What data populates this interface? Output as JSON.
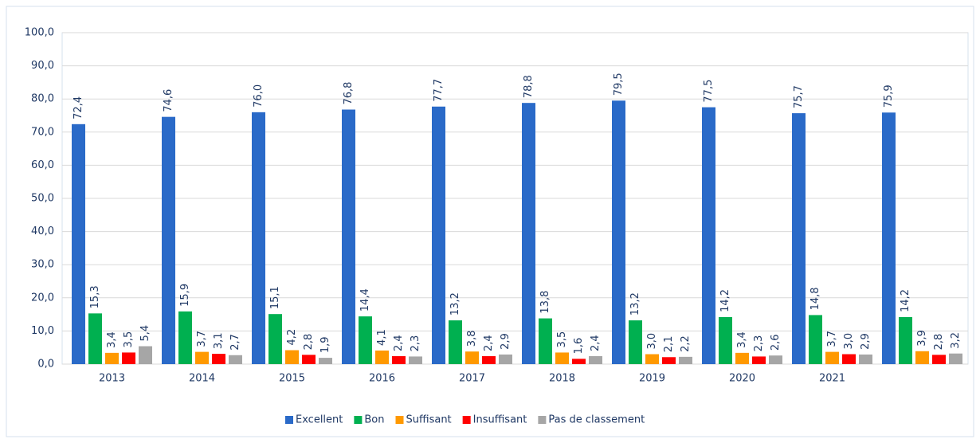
{
  "chart_data": {
    "type": "bar",
    "categories": [
      "2013",
      "2014",
      "2015",
      "2016",
      "2017",
      "2018",
      "2019",
      "2020",
      "2021",
      null
    ],
    "series": [
      {
        "name": "Excellent",
        "color": "#2a6ac8",
        "values": [
          72.4,
          74.6,
          76.0,
          76.8,
          77.7,
          78.8,
          79.5,
          77.5,
          75.7,
          75.9
        ],
        "value_labels": [
          "72,4",
          "74,6",
          "76,0",
          "76,8",
          "77,7",
          "78,8",
          "79,5",
          "77,5",
          "75,7",
          "75,9"
        ]
      },
      {
        "name": "Bon",
        "color": "#00b050",
        "values": [
          15.3,
          15.9,
          15.1,
          14.4,
          13.2,
          13.8,
          13.2,
          14.2,
          14.8,
          14.2
        ],
        "value_labels": [
          "15,3",
          "15,9",
          "15,1",
          "14,4",
          "13,2",
          "13,8",
          "13,2",
          "14,2",
          "14,8",
          "14,2"
        ]
      },
      {
        "name": "Suffisant",
        "color": "#ff9900",
        "values": [
          3.4,
          3.7,
          4.2,
          4.1,
          3.8,
          3.5,
          3.0,
          3.4,
          3.7,
          3.9
        ],
        "value_labels": [
          "3,4",
          "3,7",
          "4,2",
          "4,1",
          "3,8",
          "3,5",
          "3,0",
          "3,4",
          "3,7",
          "3,9"
        ]
      },
      {
        "name": "Insuffisant",
        "color": "#ff0000",
        "values": [
          3.5,
          3.1,
          2.8,
          2.4,
          2.4,
          1.6,
          2.1,
          2.3,
          3.0,
          2.8
        ],
        "value_labels": [
          "3,5",
          "3,1",
          "2,8",
          "2,4",
          "2,4",
          "1,6",
          "2,1",
          "2,3",
          "3,0",
          "2,8"
        ]
      },
      {
        "name": "Pas de classement",
        "color": "#a6a6a6",
        "values": [
          5.4,
          2.7,
          1.9,
          2.3,
          2.9,
          2.4,
          2.2,
          2.6,
          2.9,
          3.2
        ],
        "value_labels": [
          "5,4",
          "2,7",
          "1,9",
          "2,3",
          "2,9",
          "2,4",
          "2,2",
          "2,6",
          "2,9",
          "3,2"
        ]
      }
    ],
    "ylim": [
      0,
      100
    ],
    "yticks": [
      {
        "value": 0,
        "label": "0,0"
      },
      {
        "value": 10,
        "label": "10,0"
      },
      {
        "value": 20,
        "label": "20,0"
      },
      {
        "value": 30,
        "label": "30,0"
      },
      {
        "value": 40,
        "label": "40,0"
      },
      {
        "value": 50,
        "label": "50,0"
      },
      {
        "value": 60,
        "label": "60,0"
      },
      {
        "value": 70,
        "label": "70,0"
      },
      {
        "value": 80,
        "label": "80,0"
      },
      {
        "value": 90,
        "label": "90,0"
      },
      {
        "value": 100,
        "label": "100,0"
      }
    ],
    "grid": true,
    "legend": "bottom"
  }
}
